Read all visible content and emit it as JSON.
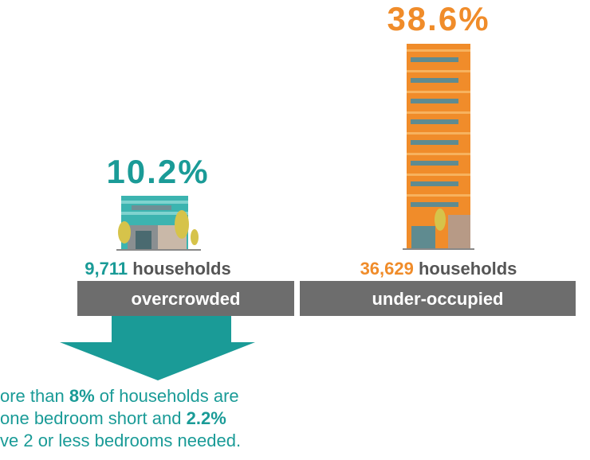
{
  "left": {
    "percent": "10.2%",
    "count": "9,711",
    "count_suffix": " households",
    "label": "overcrowded"
  },
  "right": {
    "percent": "38.6%",
    "count": "36,629",
    "count_suffix": " households",
    "label": "under-occupied"
  },
  "note": {
    "lines": [
      [
        "ore than ",
        "8%",
        " of households are"
      ],
      [
        "one bedroom short and ",
        "2.2%"
      ],
      [
        "ve 2 or less bedrooms needed."
      ]
    ]
  }
}
